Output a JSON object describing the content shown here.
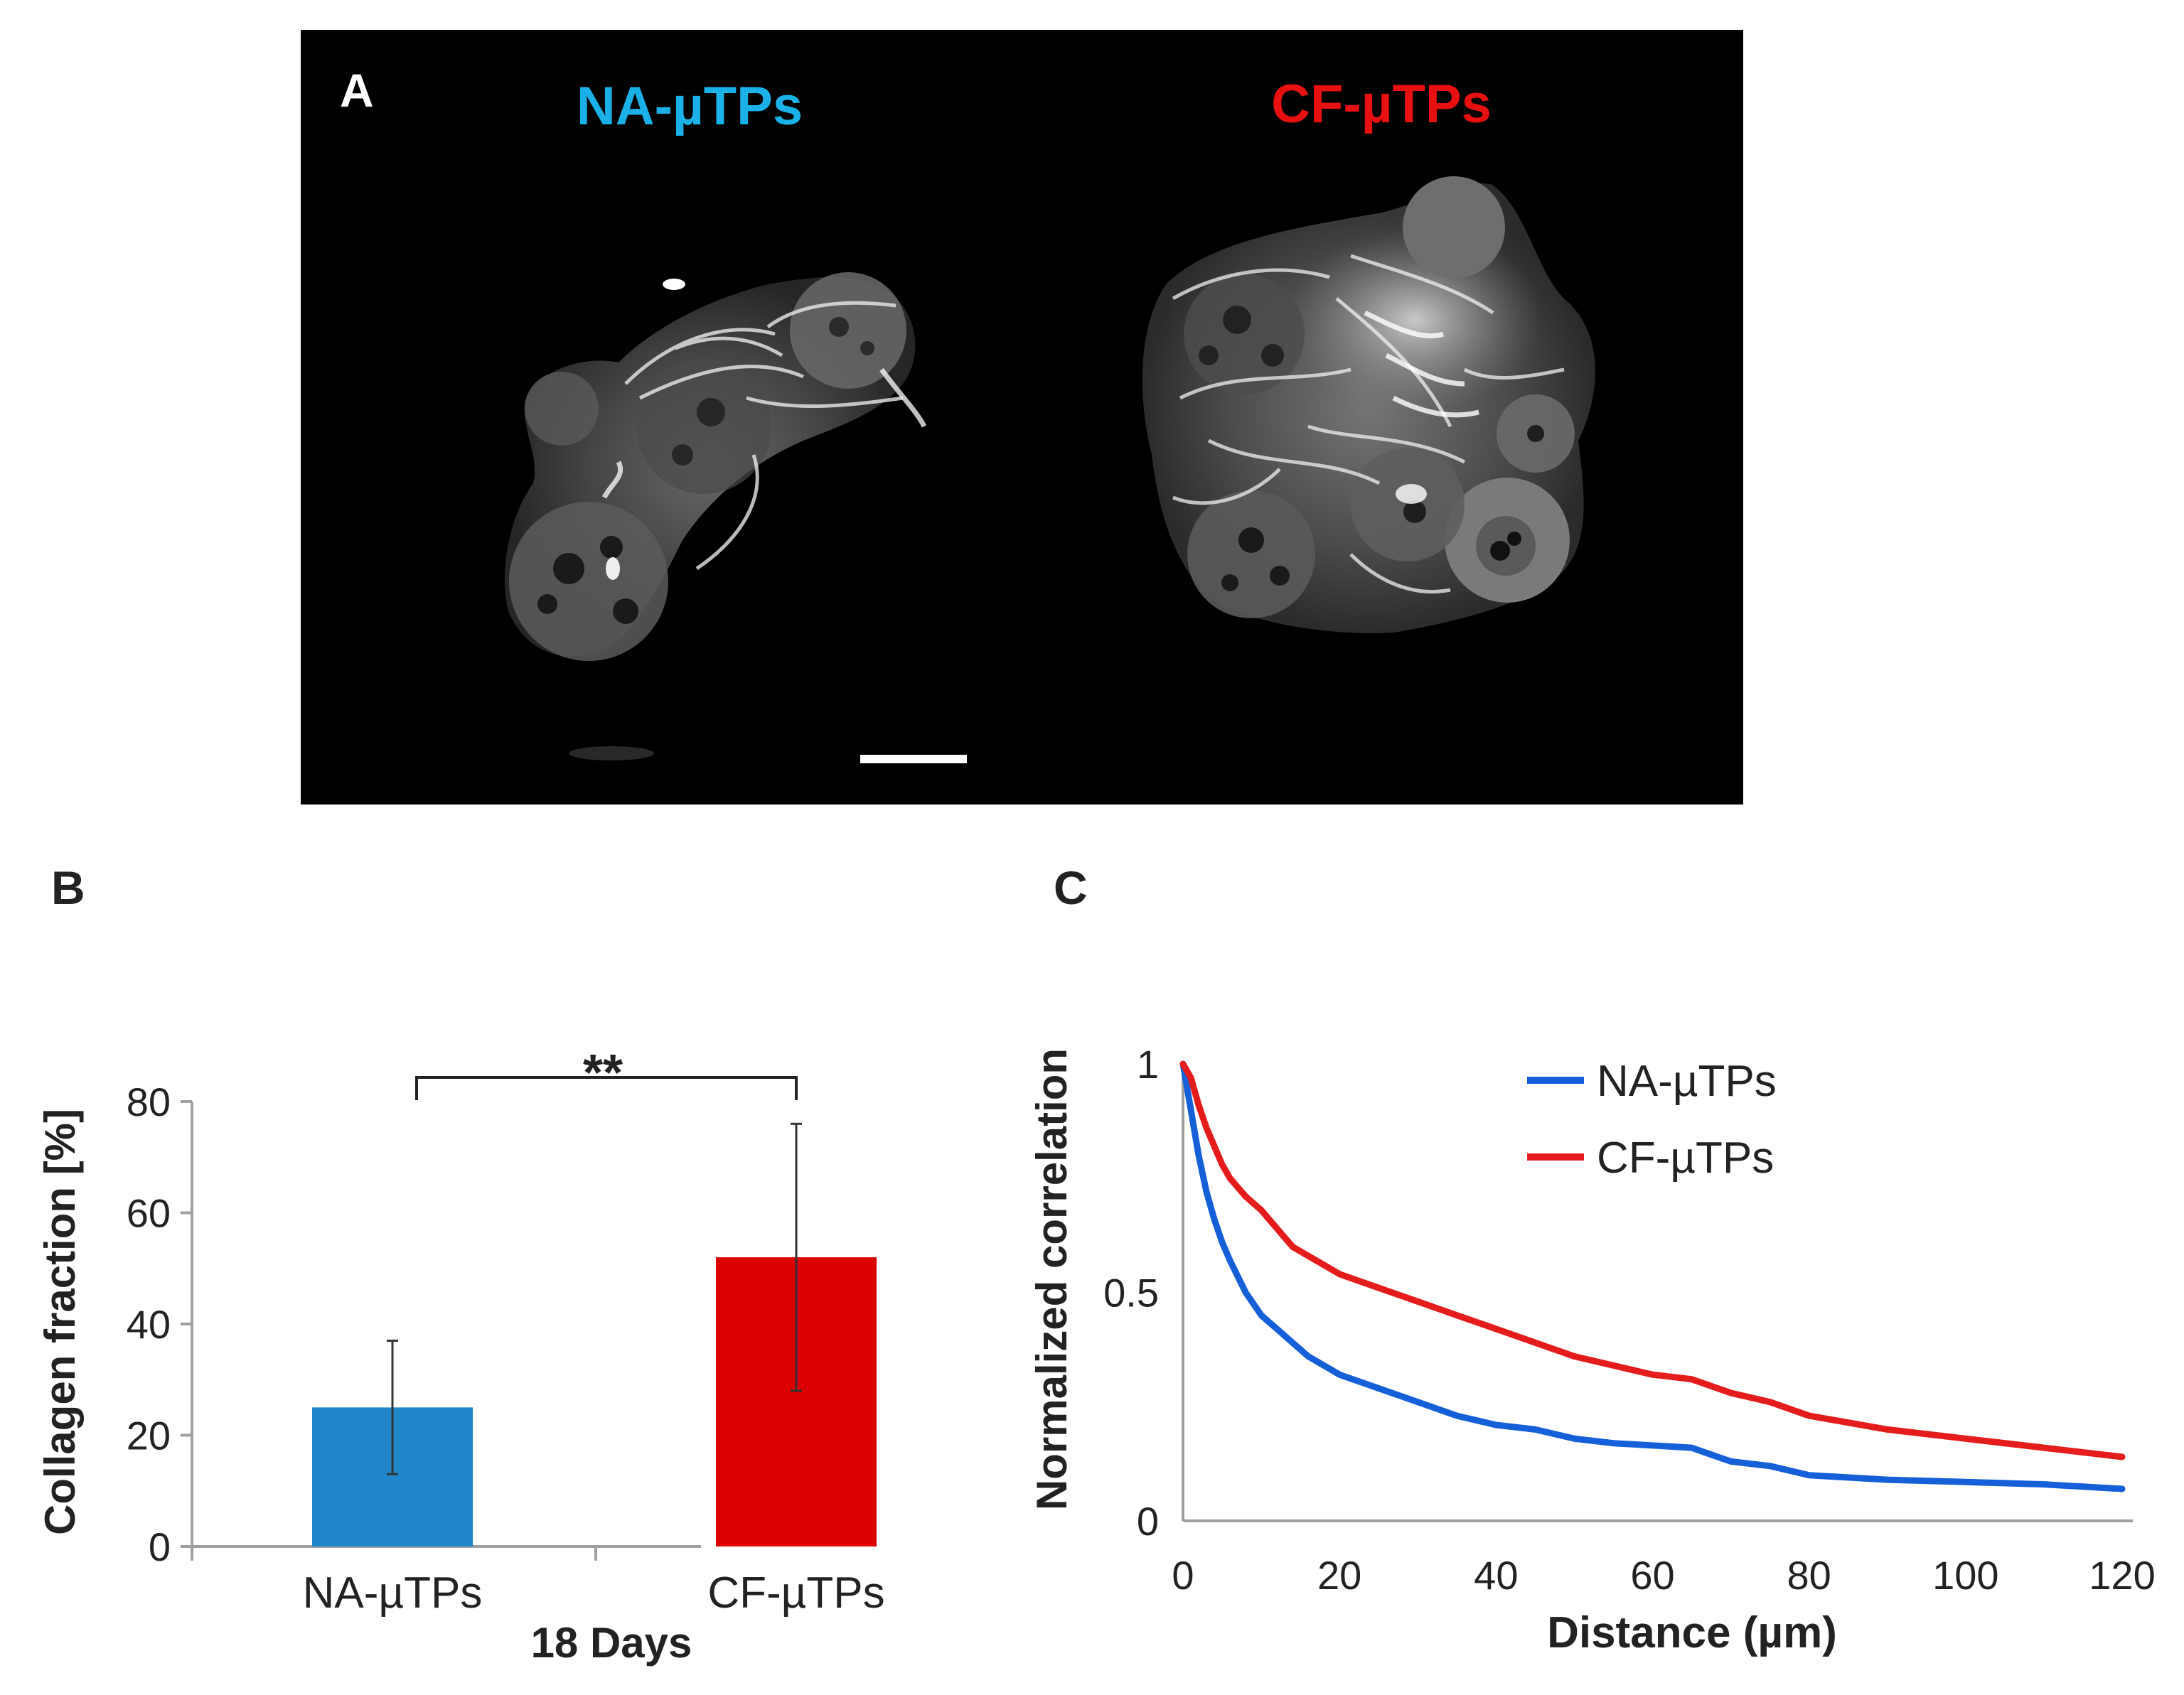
{
  "panel_a": {
    "label": "A",
    "left_title": "NA-µTPs",
    "right_title": "CF-µTPs",
    "left_title_color": "#1ab0e8",
    "right_title_color": "#e81010"
  },
  "panel_b": {
    "label": "B"
  },
  "panel_c": {
    "label": "C"
  },
  "chart_data": [
    {
      "type": "bar",
      "title": "",
      "categories": [
        "NA-µTPs",
        "CF-µTPs"
      ],
      "values": [
        25,
        52
      ],
      "error_bars": [
        [
          13,
          37
        ],
        [
          28,
          76
        ]
      ],
      "colors": [
        "#1f86c9",
        "#dd0000"
      ],
      "xlabel": "18 Days",
      "ylabel": "Collagen fraction [%]",
      "ylim": [
        0,
        80
      ],
      "yticks": [
        "0",
        "20",
        "40",
        "60",
        "80"
      ],
      "significance": "**"
    },
    {
      "type": "line",
      "title": "",
      "xlabel": "Distance (µm)",
      "ylabel": "Normalized correlation",
      "xlim": [
        0,
        120
      ],
      "ylim": [
        0,
        1
      ],
      "xticks": [
        "0",
        "20",
        "40",
        "60",
        "80",
        "100",
        "120"
      ],
      "yticks": [
        "0",
        "0.5",
        "1"
      ],
      "legend_position": "top-right",
      "series": [
        {
          "name": "NA-µTPs",
          "color": "#1560d8",
          "x": [
            0,
            1,
            2,
            3,
            4,
            5,
            6,
            8,
            10,
            12,
            14,
            16,
            18,
            20,
            25,
            30,
            35,
            40,
            45,
            50,
            55,
            60,
            65,
            70,
            75,
            80,
            90,
            100,
            110,
            120
          ],
          "y": [
            1.0,
            0.9,
            0.8,
            0.72,
            0.66,
            0.61,
            0.57,
            0.5,
            0.45,
            0.42,
            0.39,
            0.36,
            0.34,
            0.32,
            0.29,
            0.26,
            0.23,
            0.21,
            0.2,
            0.18,
            0.17,
            0.165,
            0.16,
            0.13,
            0.12,
            0.1,
            0.09,
            0.085,
            0.08,
            0.07
          ]
        },
        {
          "name": "CF-µTPs",
          "color": "#e51c1c",
          "x": [
            0,
            1,
            2,
            3,
            4,
            5,
            6,
            8,
            10,
            12,
            14,
            16,
            18,
            20,
            25,
            30,
            35,
            40,
            45,
            50,
            55,
            60,
            65,
            70,
            75,
            80,
            90,
            100,
            110,
            120
          ],
          "y": [
            1.0,
            0.97,
            0.91,
            0.86,
            0.82,
            0.78,
            0.75,
            0.71,
            0.68,
            0.64,
            0.6,
            0.58,
            0.56,
            0.54,
            0.51,
            0.48,
            0.45,
            0.42,
            0.39,
            0.36,
            0.34,
            0.32,
            0.31,
            0.28,
            0.26,
            0.23,
            0.2,
            0.18,
            0.16,
            0.14
          ]
        }
      ]
    }
  ]
}
